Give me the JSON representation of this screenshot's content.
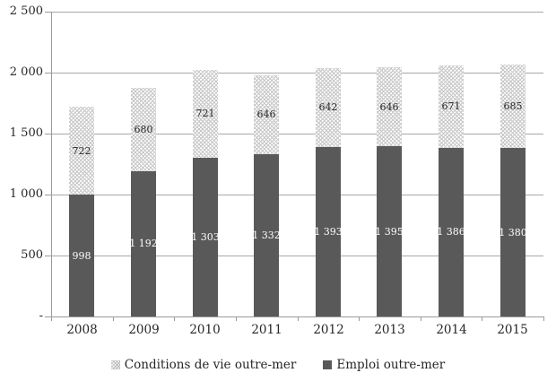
{
  "chart_data": {
    "type": "bar",
    "stacked": true,
    "title": "",
    "categories": [
      "2008",
      "2009",
      "2010",
      "2011",
      "2012",
      "2013",
      "2014",
      "2015"
    ],
    "series": [
      {
        "name": "Emploi outre-mer",
        "values": [
          998,
          1192,
          1303,
          1332,
          1393,
          1395,
          1386,
          1380
        ],
        "labels": [
          "998",
          "1 192",
          "1 303",
          "1 332",
          "1 393",
          "1 395",
          "1 386",
          "1 380"
        ],
        "fill": "solid",
        "color": "#595959",
        "label_color": "#ffffff"
      },
      {
        "name": "Conditions de vie outre-mer",
        "values": [
          722,
          680,
          721,
          646,
          642,
          646,
          671,
          685
        ],
        "labels": [
          "722",
          "680",
          "721",
          "646",
          "642",
          "646",
          "671",
          "685"
        ],
        "fill": "hatched",
        "color": "#d9d9d9",
        "label_color": "#262626"
      }
    ],
    "y_axis": {
      "min": 0,
      "max": 2500,
      "tick_interval": 500,
      "tick_labels": [
        "-",
        "500",
        "1 000",
        "1 500",
        "2 000",
        "2 500"
      ]
    },
    "grid": true,
    "legend_position": "bottom",
    "legend": [
      {
        "label": "Conditions de vie outre-mer",
        "swatch": "hatched"
      },
      {
        "label": "Emploi outre-mer",
        "swatch": "solid"
      }
    ],
    "colors": {
      "bar_dark": "#595959",
      "bar_hatch": "#c6c6c6",
      "gridline": "#a8a8a8",
      "axis": "#9a9a9a",
      "text": "#262626"
    }
  }
}
